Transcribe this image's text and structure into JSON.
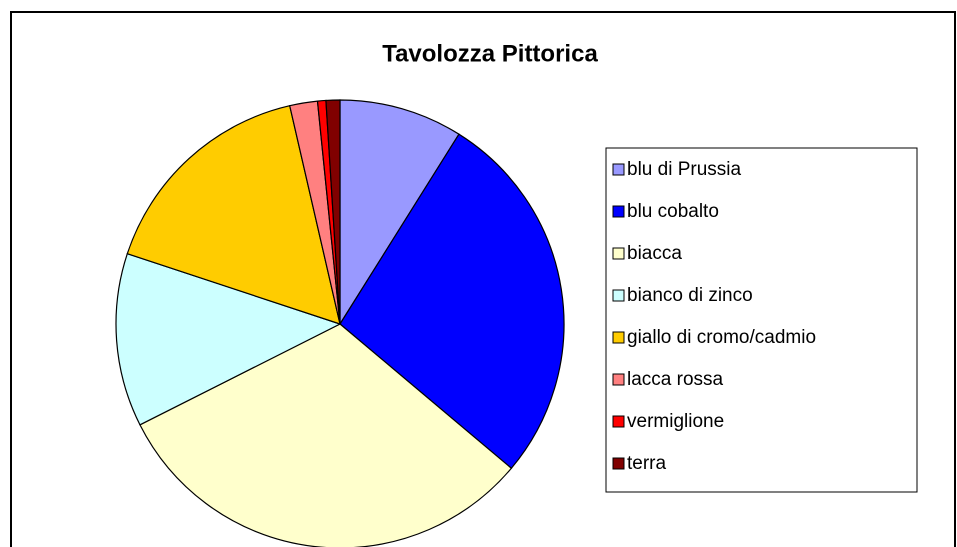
{
  "chart_data": {
    "type": "pie",
    "title": "Tavolozza Pittorica",
    "categories": [
      "blu di Prussia",
      "blu cobalto",
      "biacca",
      "bianco di zinco",
      "giallo di cromo/cadmio",
      "lacca rossa",
      "vermiglione",
      "terra"
    ],
    "values": [
      8.9,
      27.2,
      31.4,
      12.5,
      16.3,
      2.0,
      0.6,
      1.0
    ],
    "colors": [
      "#9999ff",
      "#0000ff",
      "#ffffcc",
      "#ccffff",
      "#ffcc00",
      "#ff8080",
      "#ff0000",
      "#800000"
    ],
    "legend": "right"
  }
}
